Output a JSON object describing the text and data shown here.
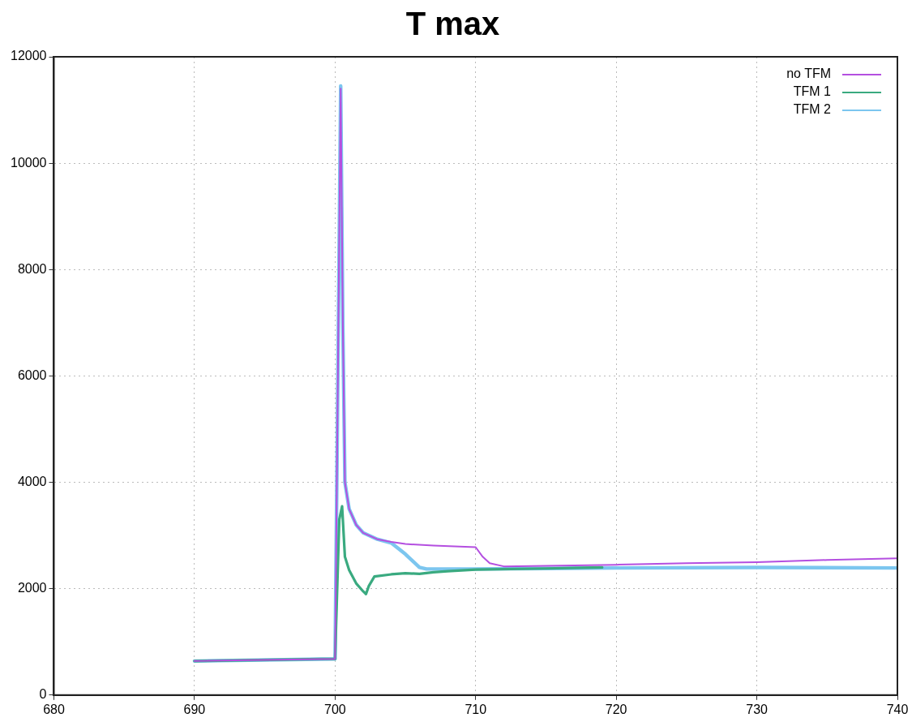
{
  "chart_data": {
    "type": "line",
    "title": "T max",
    "xlim": [
      680,
      740
    ],
    "xticks": [
      680,
      690,
      700,
      710,
      720,
      730,
      740
    ],
    "ylim": [
      0,
      12000
    ],
    "yticks": [
      0,
      2000,
      4000,
      6000,
      8000,
      10000,
      12000
    ],
    "grid": true,
    "legend": "top right",
    "marker": "none",
    "line_style": "solid",
    "series": [
      {
        "name": "no TFM",
        "color": "#b44fe0",
        "x": [
          690,
          700,
          700.2,
          700.4,
          700.55,
          700.7,
          701,
          701.5,
          702,
          703,
          704,
          705,
          707,
          710,
          710.5,
          711,
          712,
          715,
          720,
          725,
          730,
          735,
          740
        ],
        "values": [
          640,
          680,
          6000,
          11400,
          7000,
          4000,
          3500,
          3200,
          3050,
          2930,
          2880,
          2840,
          2810,
          2780,
          2600,
          2480,
          2420,
          2430,
          2450,
          2480,
          2500,
          2540,
          2570
        ]
      },
      {
        "name": "TFM 1",
        "color": "#3aaa80",
        "x": [
          690,
          700,
          700.3,
          700.5,
          700.7,
          701,
          701.5,
          702,
          702.2,
          702.4,
          702.8,
          704,
          705,
          706,
          707,
          708,
          710,
          715,
          719
        ],
        "values": [
          640,
          680,
          3300,
          3550,
          2600,
          2350,
          2100,
          1950,
          1900,
          2050,
          2230,
          2270,
          2290,
          2280,
          2310,
          2330,
          2360,
          2380,
          2400
        ]
      },
      {
        "name": "TFM 2",
        "color": "#7cc6ef",
        "x": [
          690,
          700,
          700.2,
          700.4,
          700.55,
          700.7,
          701,
          701.5,
          702,
          703,
          704,
          705,
          706,
          706.5,
          708,
          710,
          715,
          720,
          730,
          740
        ],
        "values": [
          640,
          680,
          6000,
          11450,
          7000,
          4000,
          3500,
          3200,
          3050,
          2930,
          2860,
          2650,
          2400,
          2370,
          2370,
          2370,
          2380,
          2390,
          2400,
          2390
        ]
      }
    ]
  }
}
